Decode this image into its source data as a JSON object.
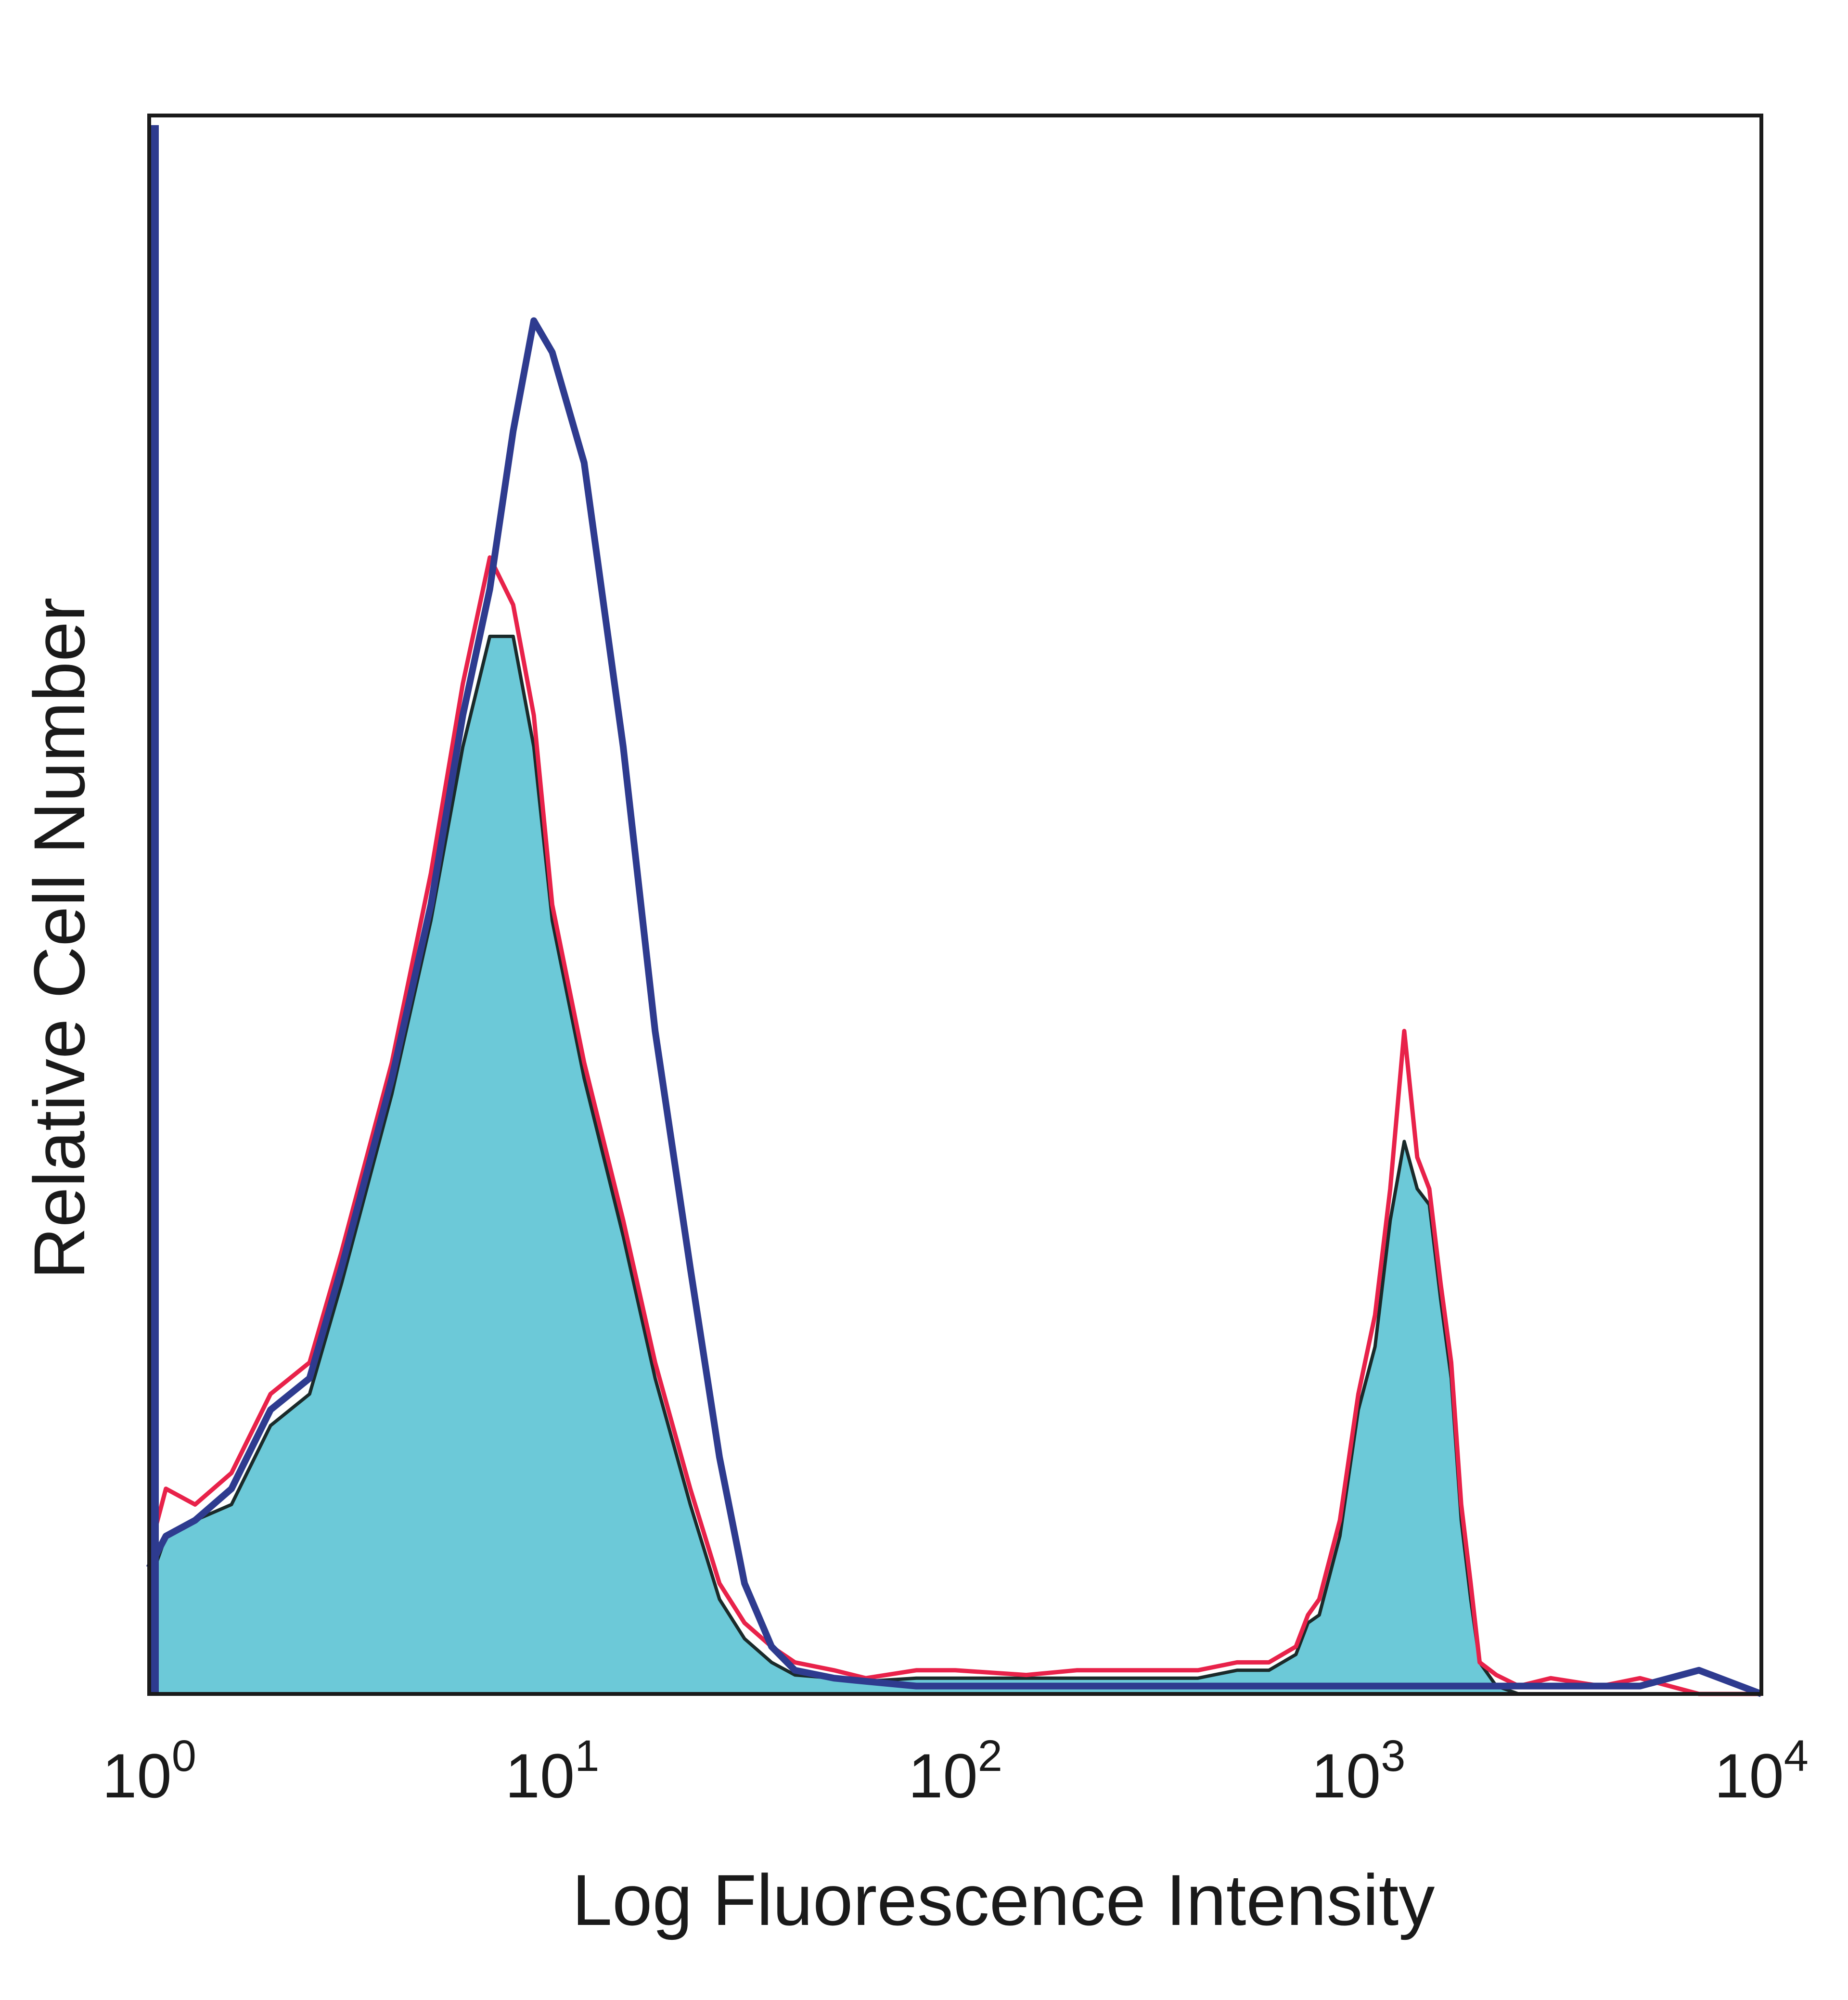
{
  "chart_data": {
    "type": "area",
    "xlabel": "Log Fluorescence Intensity",
    "ylabel": "Relative Cell Number",
    "x_scale": "log",
    "xlim": [
      1,
      10000
    ],
    "ylim": [
      0,
      100
    ],
    "y_ticks_shown": false,
    "grid": false,
    "x_ticks": [
      {
        "base": "10",
        "exp": "0",
        "value": 1
      },
      {
        "base": "10",
        "exp": "1",
        "value": 10
      },
      {
        "base": "10",
        "exp": "2",
        "value": 100
      },
      {
        "base": "10",
        "exp": "3",
        "value": 1000
      },
      {
        "base": "10",
        "exp": "4",
        "value": 10000
      }
    ],
    "colors": {
      "filled": "#6cc9d8",
      "filled_outline": "#1a2a2a",
      "red_overlay": "#e8224a",
      "blue_overlay": "#2e3b8f",
      "frame": "#1a1a1a"
    },
    "series": [
      {
        "style": "filled",
        "x": [
          1,
          1.1,
          1.3,
          1.6,
          2,
          2.5,
          3,
          4,
          5,
          6,
          7,
          8,
          9,
          10,
          12,
          15,
          18,
          22,
          26,
          30,
          35,
          40,
          50,
          60,
          80,
          100,
          150,
          200,
          300,
          400,
          500,
          600,
          700,
          750,
          800,
          900,
          1000,
          1100,
          1200,
          1300,
          1400,
          1500,
          1600,
          1700,
          1800,
          1900,
          2000,
          2200,
          2500,
          3000,
          4000,
          5000,
          7000,
          10000
        ],
        "y": [
          7,
          10,
          11,
          12,
          17,
          19,
          26,
          38,
          49,
          60,
          67,
          67,
          60,
          49,
          39,
          29,
          20,
          12,
          6,
          3.5,
          2,
          1.2,
          1,
          0.8,
          1,
          1,
          1,
          1,
          1,
          1,
          1.5,
          1.5,
          2.5,
          4.5,
          5,
          10,
          18,
          22,
          30,
          35,
          32,
          31,
          25,
          20,
          11,
          6,
          2,
          0.5,
          0,
          0,
          0,
          0,
          0,
          0
        ]
      },
      {
        "style": "red",
        "x": [
          1,
          1.1,
          1.3,
          1.6,
          2,
          2.5,
          3,
          4,
          5,
          6,
          7,
          8,
          9,
          10,
          12,
          15,
          18,
          22,
          26,
          30,
          35,
          40,
          50,
          60,
          80,
          100,
          150,
          200,
          300,
          400,
          500,
          600,
          700,
          750,
          800,
          900,
          1000,
          1100,
          1200,
          1300,
          1400,
          1500,
          1600,
          1700,
          1800,
          1900,
          2000,
          2200,
          2500,
          3000,
          4000,
          5000,
          7000,
          10000
        ],
        "y": [
          9,
          13,
          12,
          14,
          19,
          21,
          28,
          40,
          52,
          64,
          72,
          69,
          62,
          50,
          40,
          30,
          21,
          13,
          7,
          4.5,
          3,
          2,
          1.5,
          1,
          1.5,
          1.5,
          1.2,
          1.5,
          1.5,
          1.5,
          2,
          2,
          3,
          5,
          6,
          11,
          19,
          24,
          32,
          42,
          34,
          32,
          26,
          21,
          12,
          7,
          2,
          1.2,
          0.5,
          1,
          0.5,
          1,
          0,
          0
        ]
      },
      {
        "style": "blue",
        "x": [
          1,
          1.1,
          1.3,
          1.6,
          2,
          2.5,
          3,
          4,
          5,
          6,
          7,
          8,
          9,
          10,
          12,
          15,
          18,
          22,
          26,
          30,
          35,
          40,
          50,
          60,
          80,
          100,
          150,
          200,
          300,
          400,
          500,
          600,
          700,
          750,
          800,
          900,
          1000,
          1100,
          1200,
          1300,
          1400,
          1500,
          1600,
          1700,
          1800,
          1900,
          2000,
          2200,
          2500,
          3000,
          4000,
          5000,
          7000,
          10000
        ],
        "y": [
          8,
          10,
          11,
          13,
          18,
          20,
          27,
          39,
          50,
          62,
          70,
          80,
          87,
          85,
          78,
          60,
          42,
          27,
          15,
          7,
          3,
          1.5,
          1,
          0.8,
          0.5,
          0.5,
          0.5,
          0.5,
          0.5,
          0.5,
          0.5,
          0.5,
          0.5,
          0.5,
          0.5,
          0.5,
          0.5,
          0.5,
          0.5,
          0.5,
          0.5,
          0.5,
          0.5,
          0.5,
          0.5,
          0.5,
          0.5,
          0.5,
          0.5,
          0.5,
          0.5,
          0.5,
          1.5,
          0
        ]
      }
    ]
  }
}
